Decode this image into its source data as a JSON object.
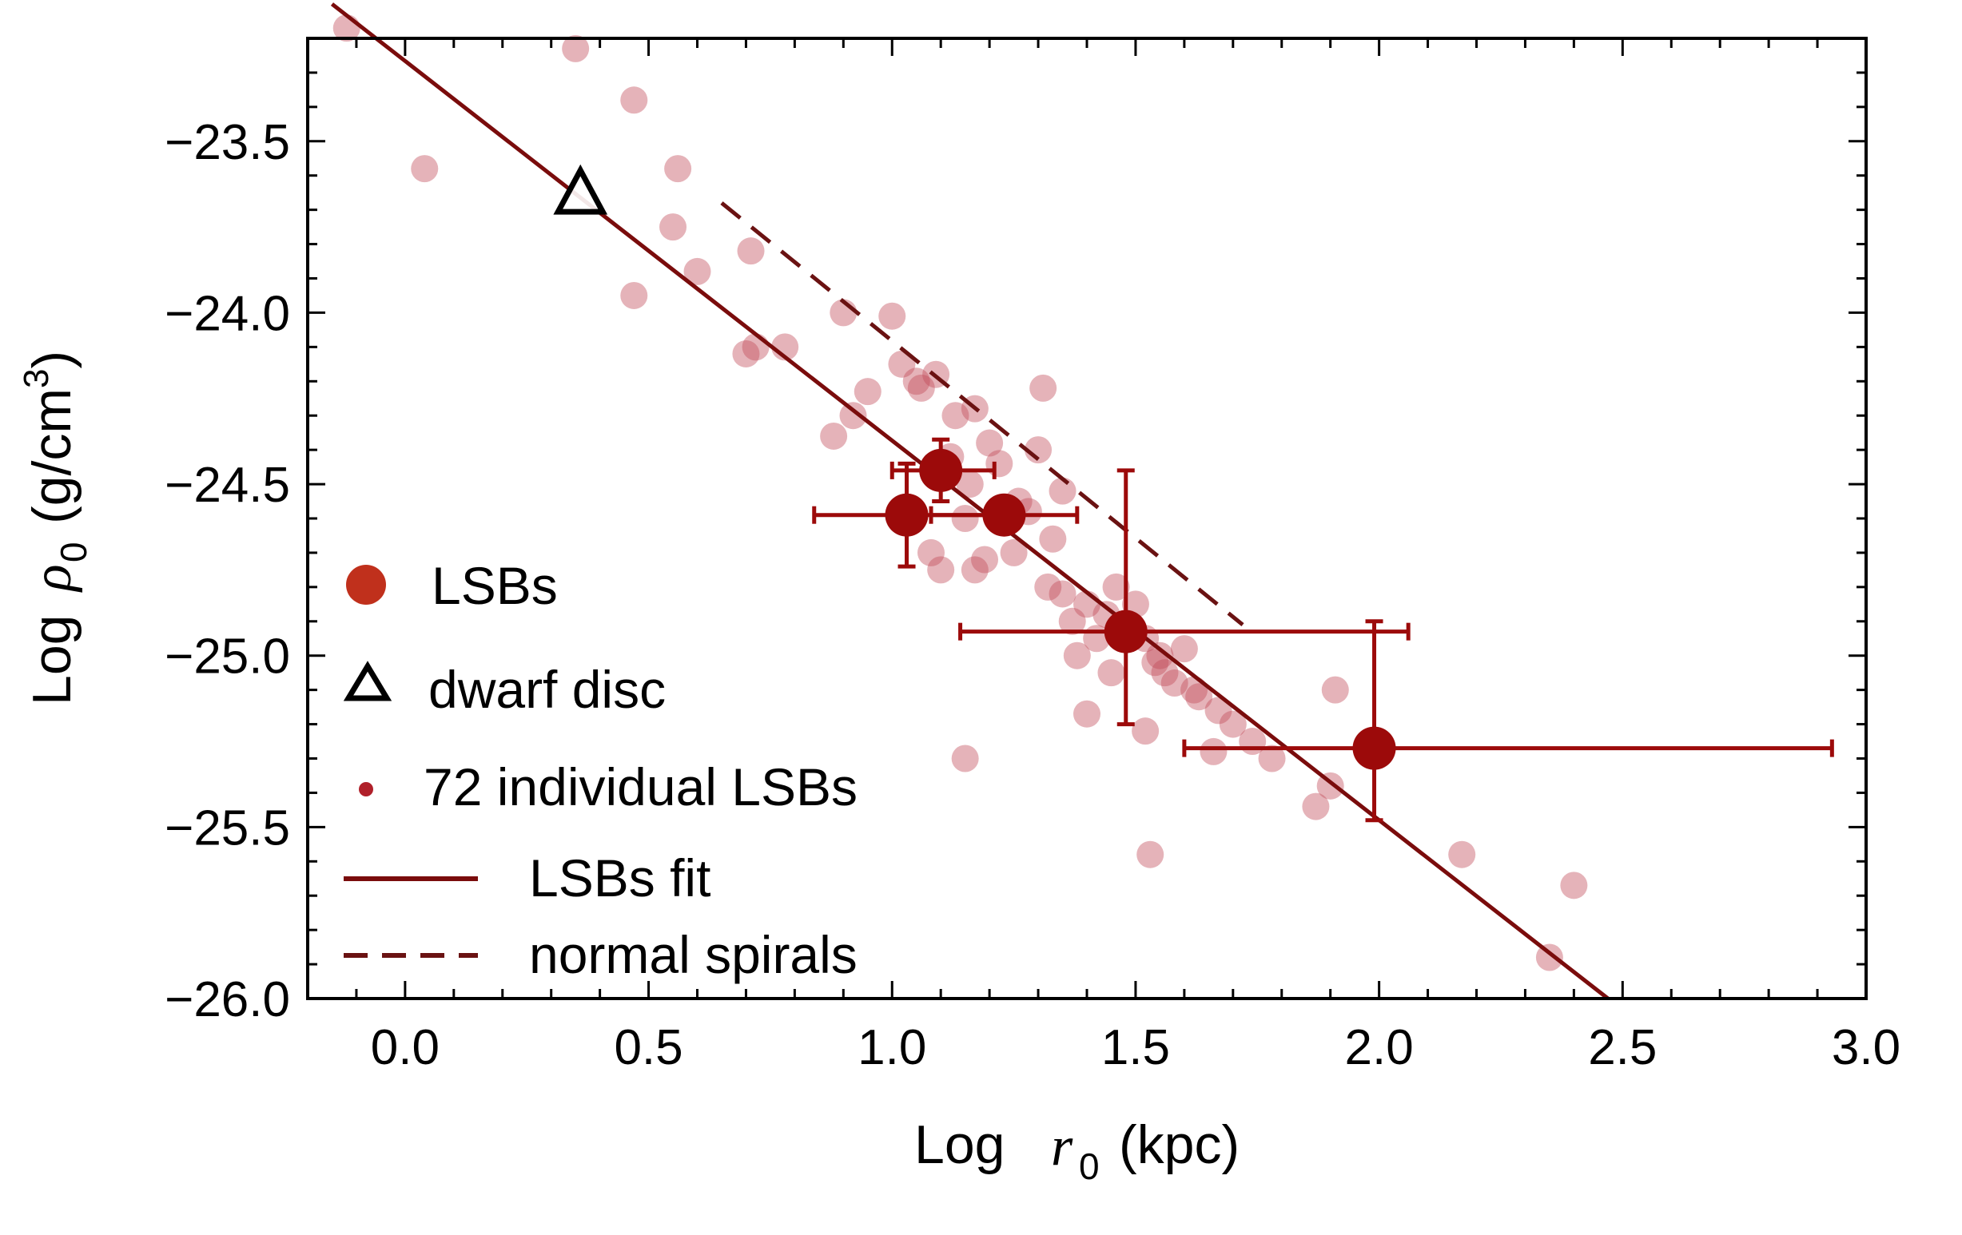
{
  "chart_data": {
    "type": "scatter",
    "xlabel": {
      "prefix": "Log",
      "symbol": "r",
      "subscript": "0",
      "unit": "(kpc)"
    },
    "ylabel": {
      "prefix": "Log",
      "symbol": "ρ",
      "subscript": "0",
      "unit_open": "(g/cm",
      "unit_sup": "3",
      "unit_close": ")"
    },
    "xlim": [
      -0.2,
      3.0
    ],
    "ylim": [
      -26.0,
      -23.2
    ],
    "xticks": [
      0.0,
      0.5,
      1.0,
      1.5,
      2.0,
      2.5,
      3.0
    ],
    "xtick_labels": [
      "0.0",
      "0.5",
      "1.0",
      "1.5",
      "2.0",
      "2.5",
      "3.0"
    ],
    "yticks": [
      -23.5,
      -24.0,
      -24.5,
      -25.0,
      -25.5,
      -26.0
    ],
    "ytick_labels": [
      "−23.5",
      "−24.0",
      "−24.5",
      "−25.0",
      "−25.5",
      "−26.0"
    ],
    "colors": {
      "lsb": "#9c0a0a",
      "lsb_legend": "#c0301c",
      "individual": "#c04a58",
      "fit": "#7a0c0c",
      "spirals": "#6a1212",
      "dwarf": "#000000"
    },
    "legend": [
      {
        "key": "lsbs",
        "label": "LSBs"
      },
      {
        "key": "dwarf",
        "label": "dwarf disc"
      },
      {
        "key": "individual",
        "label": "72 individual LSBs"
      },
      {
        "key": "fit",
        "label": "LSBs fit"
      },
      {
        "key": "spirals",
        "label": "normal spirals"
      }
    ],
    "series": [
      {
        "name": "LSBs",
        "points": [
          {
            "x": 1.03,
            "y": -24.59,
            "xerr": [
              0.19,
              0.19
            ],
            "yerr": [
              0.15,
              0.15
            ]
          },
          {
            "x": 1.1,
            "y": -24.46,
            "xerr": [
              0.1,
              0.11
            ],
            "yerr": [
              0.09,
              0.09
            ]
          },
          {
            "x": 1.23,
            "y": -24.59,
            "xerr": [
              0.15,
              0.15
            ],
            "yerr": [
              0.0,
              0.0
            ]
          },
          {
            "x": 1.48,
            "y": -24.93,
            "xerr": [
              0.34,
              0.58
            ],
            "yerr": [
              0.27,
              0.47
            ]
          },
          {
            "x": 1.99,
            "y": -25.27,
            "xerr": [
              0.39,
              0.94
            ],
            "yerr": [
              0.21,
              0.37
            ]
          }
        ]
      },
      {
        "name": "dwarf disc",
        "points": [
          {
            "x": 0.36,
            "y": -23.65
          }
        ]
      },
      {
        "name": "72 individual LSBs",
        "x": [
          -0.12,
          0.35,
          0.47,
          0.04,
          0.56,
          0.47,
          0.55,
          0.6,
          0.71,
          0.72,
          0.7,
          0.78,
          0.9,
          0.95,
          1.0,
          0.92,
          0.88,
          1.02,
          1.05,
          1.06,
          1.09,
          1.13,
          1.17,
          1.2,
          1.12,
          1.16,
          1.22,
          1.26,
          1.3,
          1.31,
          1.28,
          1.33,
          1.35,
          1.25,
          1.19,
          1.1,
          1.08,
          1.15,
          1.35,
          1.37,
          1.4,
          1.42,
          1.38,
          1.44,
          1.46,
          1.5,
          1.52,
          1.54,
          1.56,
          1.58,
          1.6,
          1.62,
          1.45,
          1.55,
          1.63,
          1.67,
          1.7,
          1.74,
          1.78,
          1.4,
          1.52,
          1.66,
          1.15,
          1.53,
          1.87,
          1.91,
          1.9,
          2.17,
          2.35,
          2.4,
          1.32,
          1.17
        ],
        "y": [
          -23.17,
          -23.23,
          -23.38,
          -23.58,
          -23.58,
          -23.95,
          -23.75,
          -23.88,
          -23.82,
          -24.1,
          -24.12,
          -24.1,
          -24.0,
          -24.23,
          -24.01,
          -24.3,
          -24.36,
          -24.15,
          -24.2,
          -24.22,
          -24.18,
          -24.3,
          -24.28,
          -24.38,
          -24.42,
          -24.5,
          -24.44,
          -24.55,
          -24.4,
          -24.22,
          -24.58,
          -24.66,
          -24.52,
          -24.7,
          -24.72,
          -24.75,
          -24.7,
          -24.6,
          -24.82,
          -24.9,
          -24.85,
          -24.95,
          -25.0,
          -24.88,
          -24.8,
          -24.85,
          -24.95,
          -25.02,
          -25.05,
          -25.08,
          -24.98,
          -25.1,
          -25.05,
          -25.0,
          -25.12,
          -25.16,
          -25.2,
          -25.25,
          -25.3,
          -25.17,
          -25.22,
          -25.28,
          -25.3,
          -25.58,
          -25.44,
          -25.1,
          -25.38,
          -25.58,
          -25.88,
          -25.67,
          -24.8,
          -24.75
        ]
      }
    ],
    "lines": [
      {
        "name": "LSBs fit",
        "style": "solid",
        "x": [
          -0.15,
          2.47
        ],
        "y": [
          -23.1,
          -26.0
        ]
      },
      {
        "name": "normal spirals",
        "style": "dashed",
        "x": [
          0.65,
          1.72
        ],
        "y": [
          -23.68,
          -24.91
        ]
      }
    ]
  }
}
